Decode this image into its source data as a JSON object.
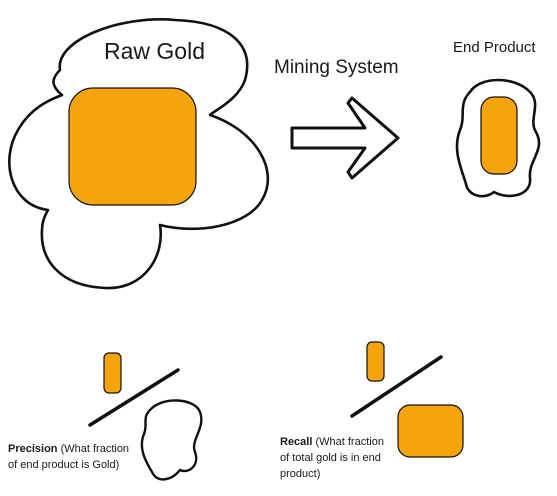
{
  "diagram": {
    "raw_gold_label": "Raw Gold",
    "process_label": "Mining System",
    "end_product_label": "End Product",
    "precision": {
      "term": "Precision",
      "definition_line1": " (What fraction",
      "definition_line2": "of end product is Gold)"
    },
    "recall": {
      "term": "Recall",
      "definition_line1": " (What fraction",
      "definition_line2": "of total gold is in end",
      "definition_line3": "product)"
    }
  },
  "colors": {
    "gold": "#F5A50B",
    "stroke": "#111111",
    "background": "#FFFFFF"
  }
}
